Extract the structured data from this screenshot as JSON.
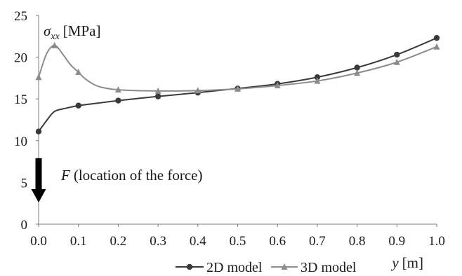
{
  "chart_data": {
    "type": "line",
    "title": "",
    "ylabel": "[MPa]",
    "ylabel_symbol": "σ",
    "ylabel_subscript": "xx",
    "xlabel": "y",
    "xlabel_unit": "[m]",
    "xlim": [
      0,
      1
    ],
    "ylim": [
      0,
      25
    ],
    "x_ticks": [
      "0.0",
      "0.1",
      "0.2",
      "0.3",
      "0.4",
      "0.5",
      "0.6",
      "0.7",
      "0.8",
      "0.9",
      "1.0"
    ],
    "y_ticks": [
      "0",
      "5",
      "10",
      "15",
      "20",
      "25"
    ],
    "grid": false,
    "legend_position": "bottom",
    "annotation": {
      "symbol": "F",
      "text": "(location of the force)",
      "arrow_x": 0,
      "arrow_from_y": 7.9,
      "arrow_to_y": 2.6
    },
    "series": [
      {
        "name": "2D model",
        "color": "#3a3a3a",
        "marker": "circle",
        "curve": [
          [
            0.0,
            11.1
          ],
          [
            0.02,
            12.4
          ],
          [
            0.04,
            13.5
          ],
          [
            0.07,
            13.9
          ],
          [
            0.1,
            14.2
          ],
          [
            0.15,
            14.5
          ],
          [
            0.2,
            14.8
          ],
          [
            0.3,
            15.3
          ],
          [
            0.4,
            15.75
          ],
          [
            0.5,
            16.25
          ],
          [
            0.6,
            16.8
          ],
          [
            0.7,
            17.6
          ],
          [
            0.8,
            18.75
          ],
          [
            0.9,
            20.3
          ],
          [
            1.0,
            22.3
          ]
        ],
        "x": [
          0.0,
          0.1,
          0.2,
          0.3,
          0.4,
          0.5,
          0.6,
          0.7,
          0.8,
          0.9,
          1.0
        ],
        "values": [
          11.1,
          14.2,
          14.8,
          15.3,
          15.75,
          16.25,
          16.8,
          17.6,
          18.75,
          20.3,
          22.3
        ]
      },
      {
        "name": "3D model",
        "color": "#8c8c8c",
        "marker": "triangle",
        "curve": [
          [
            0.0,
            17.6
          ],
          [
            0.02,
            20.4
          ],
          [
            0.04,
            21.4
          ],
          [
            0.06,
            20.4
          ],
          [
            0.08,
            19.1
          ],
          [
            0.1,
            18.2
          ],
          [
            0.12,
            17.3
          ],
          [
            0.15,
            16.5
          ],
          [
            0.2,
            16.1
          ],
          [
            0.3,
            15.95
          ],
          [
            0.4,
            16.0
          ],
          [
            0.5,
            16.2
          ],
          [
            0.6,
            16.6
          ],
          [
            0.7,
            17.15
          ],
          [
            0.8,
            18.1
          ],
          [
            0.9,
            19.4
          ],
          [
            1.0,
            21.25
          ]
        ],
        "x": [
          0.0,
          0.04,
          0.1,
          0.2,
          0.3,
          0.4,
          0.5,
          0.6,
          0.7,
          0.8,
          0.9,
          1.0
        ],
        "values": [
          17.6,
          21.4,
          18.2,
          16.1,
          15.95,
          16.0,
          16.2,
          16.6,
          17.15,
          18.1,
          19.4,
          21.25
        ]
      }
    ]
  }
}
